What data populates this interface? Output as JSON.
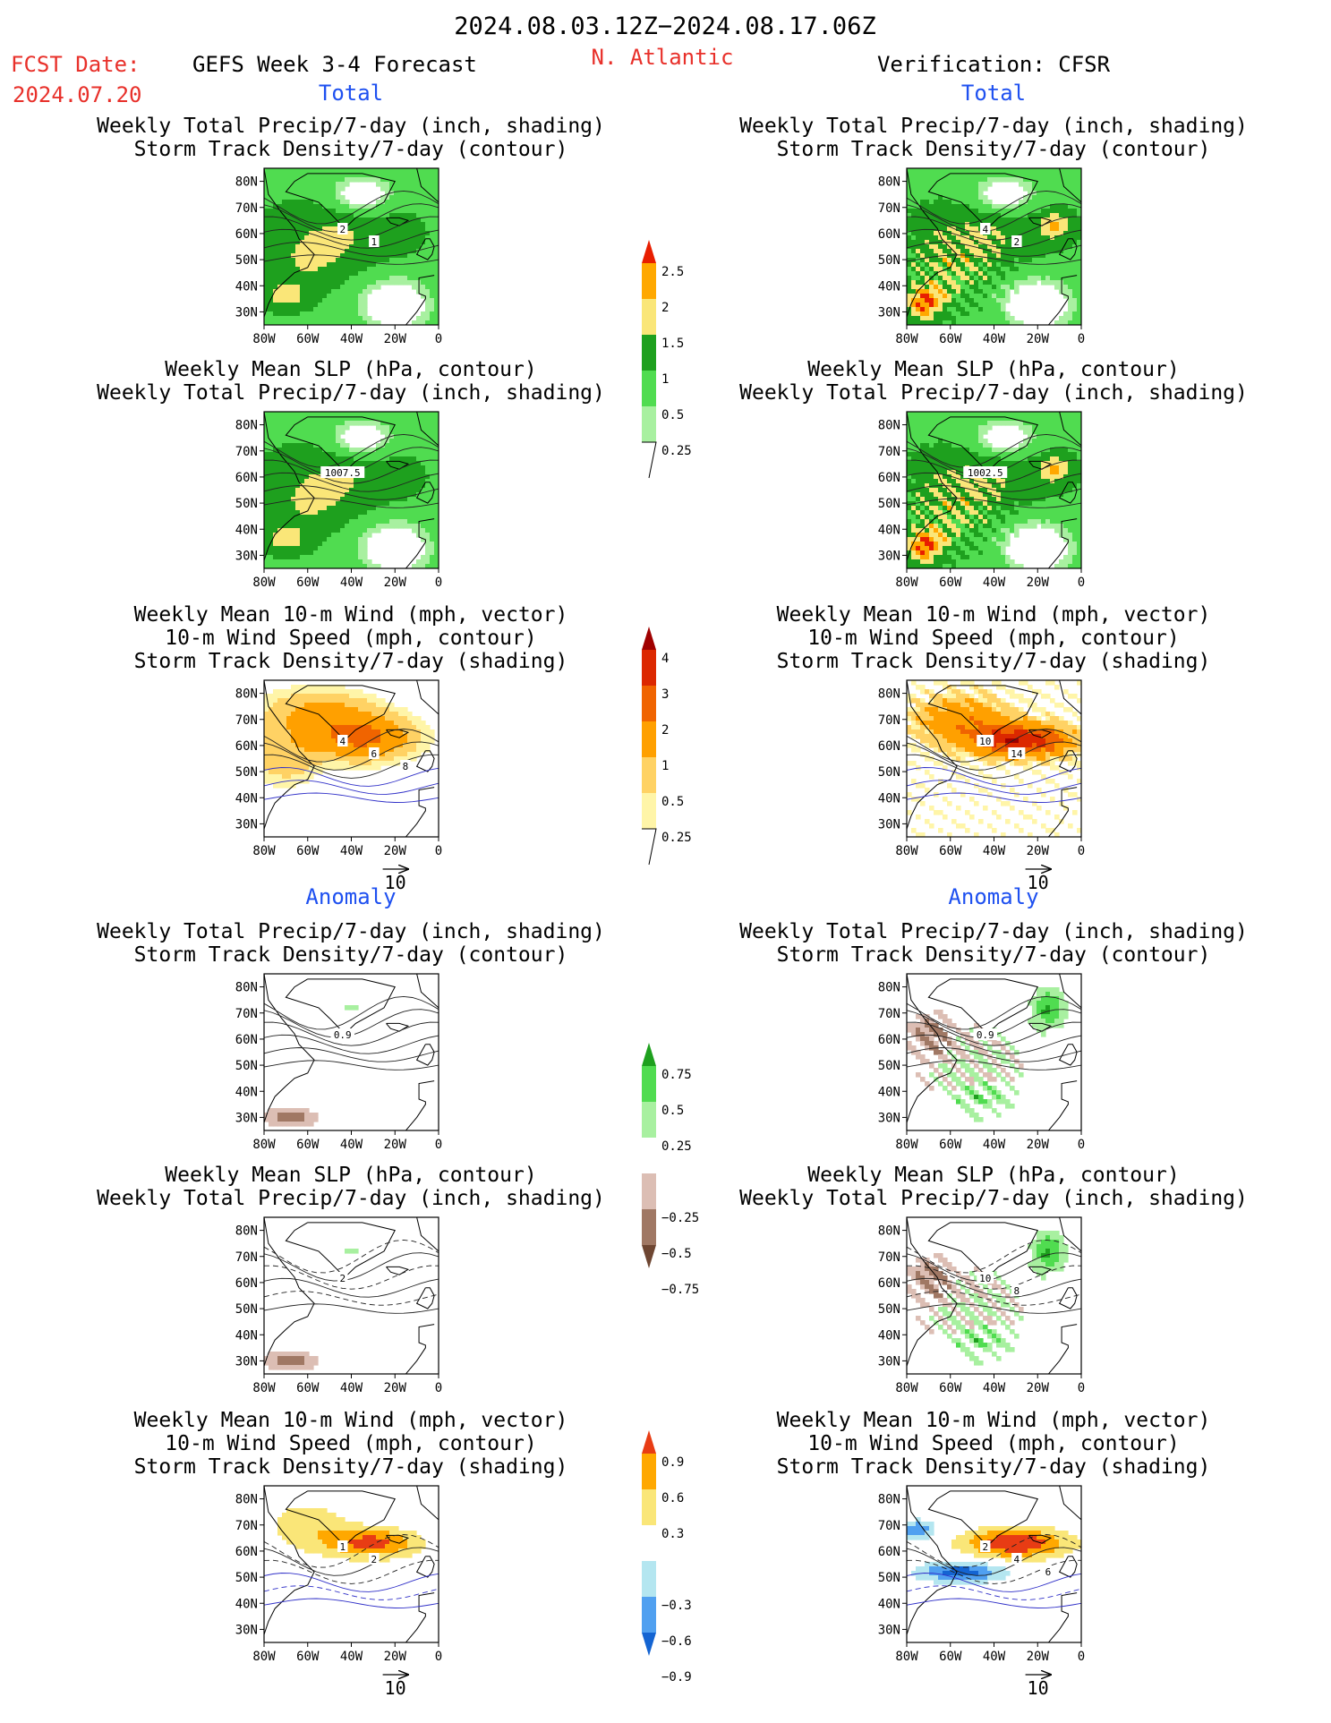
{
  "header": {
    "period": "2024.08.03.12Z−2024.08.17.06Z",
    "fcst_label": "FCST Date:",
    "fcst_date": "2024.07.20",
    "model": "GEFS Week 3-4 Forecast",
    "region": "N. Atlantic",
    "verification": "Verification: CFSR"
  },
  "section_labels": {
    "total": "Total",
    "anomaly": "Anomaly"
  },
  "panel_titles": {
    "precip_track": [
      "Weekly Total Precip/7-day (inch, shading)",
      "Storm Track Density/7-day (contour)"
    ],
    "slp_precip": [
      "Weekly Mean SLP (hPa, contour)",
      "Weekly Total Precip/7-day (inch, shading)"
    ],
    "wind_track": [
      "Weekly Mean 10-m Wind (mph, vector)",
      "10-m Wind Speed (mph, contour)",
      "Storm Track Density/7-day (shading)"
    ]
  },
  "axes": {
    "lat_ticks": [
      "80N",
      "70N",
      "60N",
      "50N",
      "40N",
      "30N"
    ],
    "lon_ticks": [
      "80W",
      "60W",
      "40W",
      "20W",
      "0"
    ]
  },
  "vector_scale": "10",
  "contour_labels": {
    "left_total_precip": [
      "2",
      "1"
    ],
    "right_total_precip": [
      "4",
      "2"
    ],
    "left_total_slp": [
      "1007.5"
    ],
    "right_total_slp": [
      "1002.5"
    ],
    "left_total_wind": [
      "4",
      "6",
      "8"
    ],
    "right_total_wind": [
      "10",
      "14"
    ],
    "left_anom_precip": [
      "0.9"
    ],
    "right_anom_precip": [
      "0.9"
    ],
    "left_anom_slp": [
      "2"
    ],
    "right_anom_slp": [
      "10",
      "8"
    ],
    "left_anom_wind": [
      "1",
      "2"
    ],
    "right_anom_wind": [
      "2",
      "4",
      "6"
    ]
  },
  "colorbars": {
    "total_precip": {
      "labels": [
        "2.5",
        "2",
        "1.5",
        "1",
        "0.5",
        "0.25"
      ],
      "colors": [
        "#a8f0a0",
        "#50dc50",
        "#1ea01e",
        "#fae678",
        "#ffa800",
        "#e81e00"
      ]
    },
    "total_track": {
      "labels": [
        "4",
        "3",
        "2",
        "1",
        "0.5",
        "0.25"
      ],
      "colors": [
        "#fff5a8",
        "#ffd264",
        "#ffa000",
        "#f06400",
        "#dc2800",
        "#a00000"
      ]
    },
    "anom_precip": {
      "labels": [
        "0.75",
        "0.5",
        "0.25",
        "−0.25",
        "−0.5",
        "−0.75"
      ],
      "colors": [
        "#6e4632",
        "#a07864",
        "#dcbeb4",
        "#ffffff",
        "#a8f0a0",
        "#50dc50",
        "#1ea01e"
      ]
    },
    "anom_track": {
      "labels": [
        "0.9",
        "0.6",
        "0.3",
        "−0.3",
        "−0.6",
        "−0.9"
      ],
      "colors": [
        "#1464d2",
        "#50a0f0",
        "#b4e6f0",
        "#ffffff",
        "#fae678",
        "#ffa800",
        "#e83c14"
      ]
    }
  },
  "chart_data": {
    "type": "heatmap",
    "maps": [
      {
        "column": "FCST Date: 2024.07.20 / GEFS Week 3-4 Forecast",
        "section": "Total",
        "panel": "precip_track",
        "field": "precip",
        "lat_range": [
          25,
          85
        ],
        "lon_range": [
          -80,
          0
        ]
      },
      {
        "column": "Verification: CFSR",
        "section": "Total",
        "panel": "precip_track",
        "field": "precip",
        "lat_range": [
          25,
          85
        ],
        "lon_range": [
          -80,
          0
        ]
      },
      {
        "column": "FCST Date: 2024.07.20 / GEFS Week 3-4 Forecast",
        "section": "Total",
        "panel": "slp_precip",
        "field": "precip",
        "lat_range": [
          25,
          85
        ],
        "lon_range": [
          -80,
          0
        ]
      },
      {
        "column": "Verification: CFSR",
        "section": "Total",
        "panel": "slp_precip",
        "field": "precip",
        "lat_range": [
          25,
          85
        ],
        "lon_range": [
          -80,
          0
        ]
      },
      {
        "column": "FCST Date: 2024.07.20 / GEFS Week 3-4 Forecast",
        "section": "Total",
        "panel": "wind_track",
        "field": "track",
        "lat_range": [
          25,
          85
        ],
        "lon_range": [
          -80,
          0
        ]
      },
      {
        "column": "Verification: CFSR",
        "section": "Total",
        "panel": "wind_track",
        "field": "track",
        "lat_range": [
          25,
          85
        ],
        "lon_range": [
          -80,
          0
        ]
      },
      {
        "column": "FCST Date: 2024.07.20 / GEFS Week 3-4 Forecast",
        "section": "Anomaly",
        "panel": "precip_track",
        "field": "precip_anom",
        "lat_range": [
          25,
          85
        ],
        "lon_range": [
          -80,
          0
        ]
      },
      {
        "column": "Verification: CFSR",
        "section": "Anomaly",
        "panel": "precip_track",
        "field": "precip_anom",
        "lat_range": [
          25,
          85
        ],
        "lon_range": [
          -80,
          0
        ]
      },
      {
        "column": "FCST Date: 2024.07.20 / GEFS Week 3-4 Forecast",
        "section": "Anomaly",
        "panel": "slp_precip",
        "field": "precip_anom",
        "lat_range": [
          25,
          85
        ],
        "lon_range": [
          -80,
          0
        ]
      },
      {
        "column": "Verification: CFSR",
        "section": "Anomaly",
        "panel": "slp_precip",
        "field": "precip_anom",
        "lat_range": [
          25,
          85
        ],
        "lon_range": [
          -80,
          0
        ]
      },
      {
        "column": "FCST Date: 2024.07.20 / GEFS Week 3-4 Forecast",
        "section": "Anomaly",
        "panel": "wind_track",
        "field": "track_anom",
        "lat_range": [
          25,
          85
        ],
        "lon_range": [
          -80,
          0
        ]
      },
      {
        "column": "Verification: CFSR",
        "section": "Anomaly",
        "panel": "wind_track",
        "field": "track_anom",
        "lat_range": [
          25,
          85
        ],
        "lon_range": [
          -80,
          0
        ]
      }
    ]
  }
}
